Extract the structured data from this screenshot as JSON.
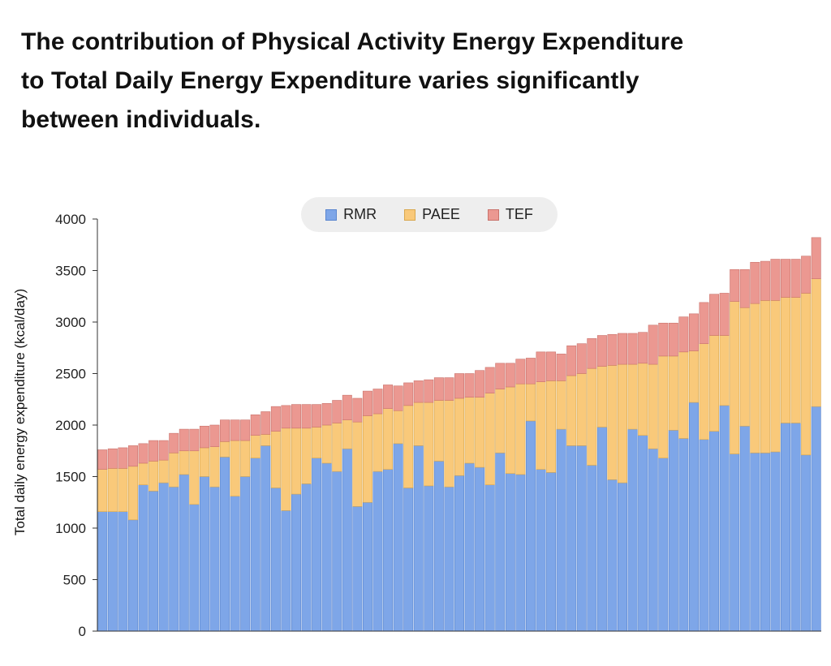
{
  "title_lines": [
    "The contribution of Physical Activity Energy Expenditure",
    "to Total Daily Energy Expenditure varies significantly",
    "between individuals."
  ],
  "colors": {
    "rmr": "#7ea6e8",
    "paee": "#f9c97a",
    "tef": "#eb9891",
    "axis": "#333333"
  },
  "chart_data": {
    "type": "bar",
    "stacked": true,
    "title": "The contribution of Physical Activity Energy Expenditure to Total Daily Energy Expenditure varies significantly between individuals.",
    "xlabel": "",
    "ylabel": "Total daily energy expenditure (kcal/day)",
    "ylim": [
      0,
      4000
    ],
    "yticks": [
      0,
      500,
      1000,
      1500,
      2000,
      2500,
      3000,
      3500,
      4000
    ],
    "legend_position": "top-center",
    "grid": false,
    "legend": [
      "RMR",
      "PAEE",
      "TEF"
    ],
    "series": [
      {
        "name": "RMR",
        "values": [
          1160,
          1160,
          1160,
          1080,
          1420,
          1360,
          1440,
          1400,
          1520,
          1230,
          1500,
          1400,
          1690,
          1310,
          1500,
          1680,
          1800,
          1390,
          1170,
          1330,
          1430,
          1680,
          1630,
          1550,
          1770,
          1210,
          1250,
          1550,
          1570,
          1820,
          1390,
          1800,
          1410,
          1650,
          1400,
          1510,
          1630,
          1590,
          1420,
          1730,
          1530,
          1520,
          2040,
          1570,
          1540,
          1960,
          1800,
          1800,
          1610,
          1980,
          1470,
          1440,
          1960,
          1900,
          1770,
          1680,
          1950,
          1870,
          2220,
          1860,
          1940,
          2190,
          1720,
          1990,
          1730,
          1730,
          1740,
          2020,
          2020,
          1710,
          2180
        ]
      },
      {
        "name": "PAEE",
        "values": [
          410,
          420,
          420,
          520,
          210,
          290,
          220,
          330,
          230,
          520,
          280,
          390,
          150,
          540,
          350,
          220,
          110,
          550,
          800,
          640,
          540,
          300,
          370,
          470,
          280,
          820,
          840,
          560,
          590,
          320,
          800,
          420,
          810,
          590,
          840,
          750,
          640,
          680,
          890,
          620,
          840,
          880,
          360,
          850,
          890,
          470,
          680,
          700,
          940,
          590,
          1110,
          1150,
          630,
          700,
          820,
          990,
          720,
          840,
          500,
          930,
          930,
          680,
          1480,
          1150,
          1450,
          1480,
          1470,
          1220,
          1220,
          1570,
          1240
        ]
      },
      {
        "name": "TEF",
        "values": [
          190,
          190,
          200,
          200,
          190,
          200,
          190,
          190,
          210,
          210,
          210,
          210,
          210,
          200,
          200,
          200,
          220,
          240,
          220,
          230,
          230,
          220,
          210,
          220,
          240,
          230,
          240,
          240,
          230,
          240,
          220,
          210,
          220,
          220,
          220,
          240,
          230,
          260,
          250,
          250,
          230,
          240,
          250,
          290,
          280,
          260,
          290,
          290,
          290,
          300,
          300,
          300,
          300,
          300,
          380,
          320,
          320,
          340,
          360,
          400,
          400,
          410,
          310,
          370,
          400,
          380,
          400,
          370,
          370,
          360,
          400
        ]
      }
    ]
  }
}
